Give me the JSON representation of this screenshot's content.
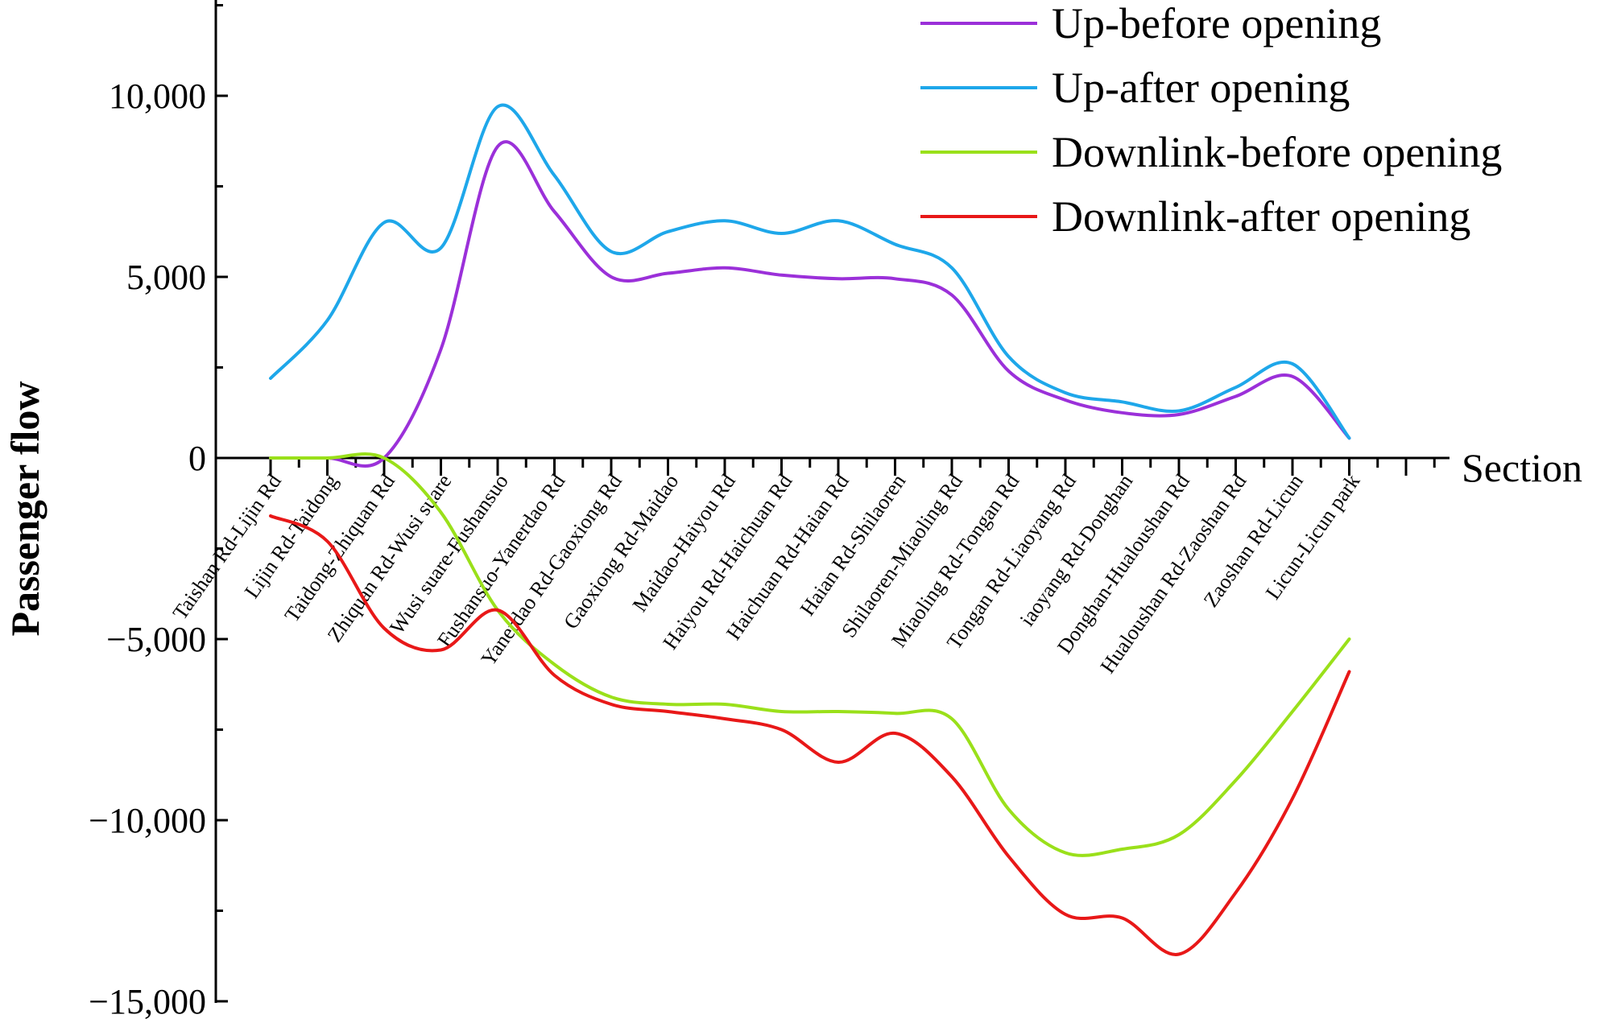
{
  "chart_data": {
    "type": "line",
    "xlabel": "Section",
    "ylabel": "Passenger flow",
    "ylim": [
      -15000,
      12500
    ],
    "yticks": [
      -15000,
      -10000,
      -5000,
      0,
      5000,
      10000
    ],
    "ytick_labels": [
      "−15,000",
      "−10,000",
      "−5,000",
      "0",
      "5,000",
      "10,000"
    ],
    "grid": false,
    "legend_position": "top-right",
    "categories": [
      "Taishan Rd-Lijin Rd",
      "Lijin Rd-Taidong",
      "Taidong-Zhiquan Rd",
      "Zhiquan Rd-Wusi suare",
      "Wusi suare-Fushansuo",
      "Fushansuo-Yanerdao Rd",
      "Yanerdao Rd-Gaoxiong Rd",
      "Gaoxiong Rd-Maidao",
      "Maidao-Haiyou Rd",
      "Haiyou Rd-Haichuan Rd",
      "Haichuan Rd-Haian Rd",
      "Haian Rd-Shilaoren",
      "Shilaoren-Miaoling Rd",
      "Miaoling Rd-Tongan Rd",
      "Tongan Rd-Liaoyang Rd",
      "iaoyang Rd-Donghan",
      "Donghan-Hualoushan Rd",
      "Hualoushan Rd-Zaoshan Rd",
      "Zaoshan Rd-Licun",
      "Licun-Licun park"
    ],
    "series": [
      {
        "name": "Up-before opening",
        "color": "#9b30d9",
        "values": [
          0,
          0,
          0,
          3000,
          8600,
          6800,
          5000,
          5100,
          5250,
          5050,
          4950,
          4950,
          4500,
          2400,
          1600,
          1250,
          1200,
          1700,
          2250,
          550
        ]
      },
      {
        "name": "Up-after opening",
        "color": "#1ea7ea",
        "values": [
          2200,
          3800,
          6500,
          5800,
          9700,
          7800,
          5700,
          6250,
          6550,
          6200,
          6550,
          5900,
          5250,
          2800,
          1800,
          1550,
          1300,
          1950,
          2600,
          550
        ]
      },
      {
        "name": "Downlink-before opening",
        "color": "#9ae01a",
        "values": [
          0,
          0,
          0,
          -1500,
          -4200,
          -5700,
          -6600,
          -6800,
          -6800,
          -7000,
          -7000,
          -7050,
          -7200,
          -9700,
          -10900,
          -10800,
          -10400,
          -8900,
          -7000,
          -5000
        ]
      },
      {
        "name": "Downlink-after opening",
        "color": "#e81818",
        "values": [
          -1600,
          -2300,
          -4700,
          -5300,
          -4200,
          -6000,
          -6800,
          -7000,
          -7200,
          -7500,
          -8400,
          -7600,
          -8800,
          -11000,
          -12600,
          -12700,
          -13700,
          -12000,
          -9400,
          -5900
        ]
      }
    ]
  }
}
